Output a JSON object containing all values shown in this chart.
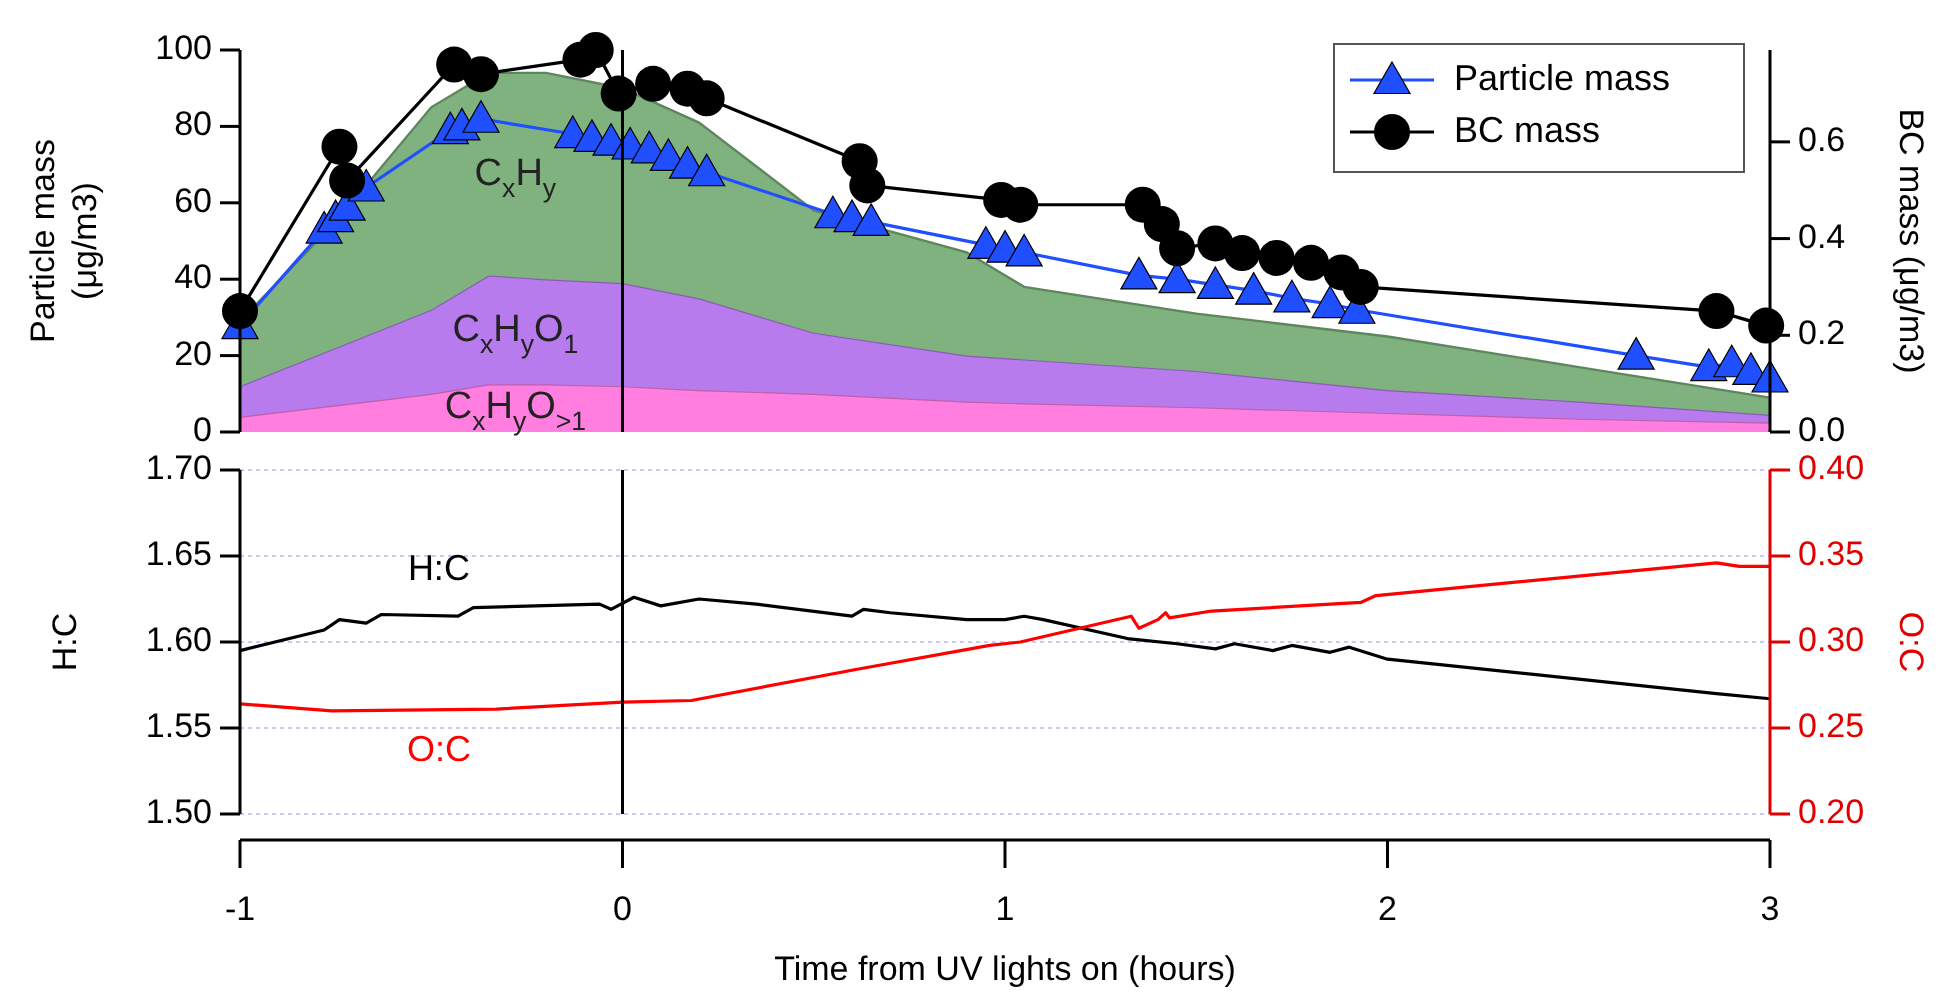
{
  "chart_data": [
    {
      "type": "area",
      "stacked": true,
      "tick_labels": "y",
      "legend": "top right",
      "ylabel": "Particle mass (μg/m3)",
      "y2label": "BC mass (μg/m3)",
      "xlim": [
        -1,
        3
      ],
      "ylim": [
        0,
        100
      ],
      "yticks": [
        0,
        20,
        40,
        60,
        80,
        100
      ],
      "y2lim": [
        0,
        0.79
      ],
      "y2ticks": [
        {
          "value": 0,
          "label": "0.0"
        },
        0.2,
        0.4,
        0.6
      ],
      "x": [
        -1,
        -0.75,
        -0.5,
        -0.35,
        -0.2,
        0,
        0.2,
        0.5,
        0.9,
        1.05,
        1.5,
        2,
        2.5,
        3
      ],
      "ref_lines": [
        {
          "axis": "x",
          "value": 0,
          "color": "#000000"
        }
      ],
      "series": [
        {
          "name": "C$_{x}$H$_{y}$O$_{>1}$",
          "color": "#ff7ee0",
          "values": [
            4,
            7,
            10,
            12.5,
            12.5,
            12,
            11,
            10,
            8,
            7.5,
            6.5,
            5,
            3.5,
            2.5
          ]
        },
        {
          "name": "C$_{x}$H$_{y}$O$_{1}$",
          "color": "#b77bee",
          "values": [
            8,
            15,
            22,
            28.5,
            27.5,
            27,
            24,
            16,
            12,
            11.5,
            9.5,
            6,
            4.5,
            2
          ]
        },
        {
          "name": "C$_{x}$H$_{y}$",
          "color": "#7fb27f",
          "values": [
            17,
            33,
            53,
            53,
            54,
            51,
            46,
            32,
            27,
            19,
            15,
            14,
            9,
            4.5
          ]
        },
        {
          "name": "Particle mass",
          "type": "line",
          "marker": "triangle",
          "color": "#1f4fff",
          "x": [
            -1,
            -0.78,
            -0.75,
            -0.72,
            -0.67,
            -0.45,
            -0.42,
            -0.37,
            -0.13,
            -0.08,
            -0.03,
            0.02,
            0.07,
            0.12,
            0.17,
            0.22,
            0.55,
            0.6,
            0.65,
            0.95,
            1.0,
            1.05,
            1.35,
            1.45,
            1.55,
            1.65,
            1.75,
            1.85,
            1.92,
            2.65,
            2.84,
            2.9,
            2.95,
            3
          ],
          "values": [
            28,
            53,
            56,
            59,
            64,
            79,
            80,
            82,
            78,
            77,
            76,
            75,
            74,
            72,
            70,
            68,
            57,
            56,
            55,
            49,
            48,
            47,
            41,
            40,
            38.5,
            37,
            35,
            33.5,
            32,
            20,
            17,
            18,
            16,
            14
          ]
        },
        {
          "name": "BC mass",
          "type": "line",
          "marker": "circle",
          "axis": "y2",
          "color": "#000000",
          "x": [
            -1,
            -0.74,
            -0.72,
            -0.44,
            -0.37,
            -0.11,
            -0.07,
            -0.01,
            0.08,
            0.17,
            0.22,
            0.62,
            0.64,
            0.99,
            1.04,
            1.36,
            1.41,
            1.45,
            1.55,
            1.62,
            1.71,
            1.8,
            1.88,
            1.93,
            2.86,
            2.99
          ],
          "values": [
            0.25,
            0.59,
            0.52,
            0.76,
            0.74,
            0.77,
            0.79,
            0.7,
            0.72,
            0.71,
            0.69,
            0.56,
            0.51,
            0.48,
            0.47,
            0.47,
            0.43,
            0.38,
            0.39,
            0.37,
            0.36,
            0.35,
            0.33,
            0.3,
            0.25,
            0.22
          ]
        }
      ]
    },
    {
      "type": "line",
      "xlabel": "Time from UV lights on (hours)",
      "ylabel": "H:C",
      "y2label": "O:C",
      "grid": "y",
      "xlim": [
        -1,
        3
      ],
      "xticks": [
        -1,
        0,
        1,
        2,
        3
      ],
      "ylim": [
        1.5,
        1.7
      ],
      "yticks": [
        {
          "value": 1.5,
          "label": "1.50"
        },
        {
          "value": 1.55,
          "label": "1.55"
        },
        {
          "value": 1.6,
          "label": "1.60"
        },
        {
          "value": 1.65,
          "label": "1.65"
        },
        {
          "value": 1.7,
          "label": "1.70"
        }
      ],
      "y2lim": [
        0.2,
        0.4
      ],
      "y2ticks": [
        {
          "value": 0.2,
          "label": "0.20"
        },
        {
          "value": 0.25,
          "label": "0.25"
        },
        {
          "value": 0.3,
          "label": "0.30"
        },
        {
          "value": 0.35,
          "label": "0.35"
        },
        {
          "value": 0.4,
          "label": "0.40"
        }
      ],
      "ref_lines": [
        {
          "axis": "x",
          "value": 0,
          "color": "#000000"
        }
      ],
      "series": [
        {
          "name": "H:C",
          "color": "#000000",
          "x": [
            -1,
            -0.78,
            -0.74,
            -0.67,
            -0.63,
            -0.43,
            -0.39,
            -0.06,
            -0.03,
            0.03,
            0.1,
            0.2,
            0.35,
            0.6,
            0.63,
            0.7,
            0.9,
            1.0,
            1.05,
            1.1,
            1.32,
            1.45,
            1.55,
            1.6,
            1.7,
            1.75,
            1.85,
            1.9,
            2.0,
            2.86,
            3
          ],
          "values": [
            1.595,
            1.607,
            1.613,
            1.611,
            1.616,
            1.615,
            1.62,
            1.622,
            1.619,
            1.626,
            1.621,
            1.625,
            1.622,
            1.615,
            1.619,
            1.617,
            1.613,
            1.613,
            1.615,
            1.613,
            1.602,
            1.599,
            1.596,
            1.599,
            1.595,
            1.598,
            1.594,
            1.597,
            1.59,
            1.57,
            1.567
          ]
        },
        {
          "name": "O:C",
          "color": "#ff0000",
          "axis": "y2",
          "x": [
            -1,
            -0.76,
            -0.33,
            0,
            0.18,
            0.61,
            0.96,
            1.04,
            1.33,
            1.35,
            1.4,
            1.42,
            1.43,
            1.54,
            1.93,
            1.97,
            2.86,
            2.92,
            3
          ],
          "values": [
            0.264,
            0.26,
            0.261,
            0.265,
            0.266,
            0.284,
            0.298,
            0.3,
            0.315,
            0.308,
            0.313,
            0.317,
            0.314,
            0.318,
            0.323,
            0.327,
            0.346,
            0.344,
            0.344
          ]
        }
      ]
    }
  ]
}
